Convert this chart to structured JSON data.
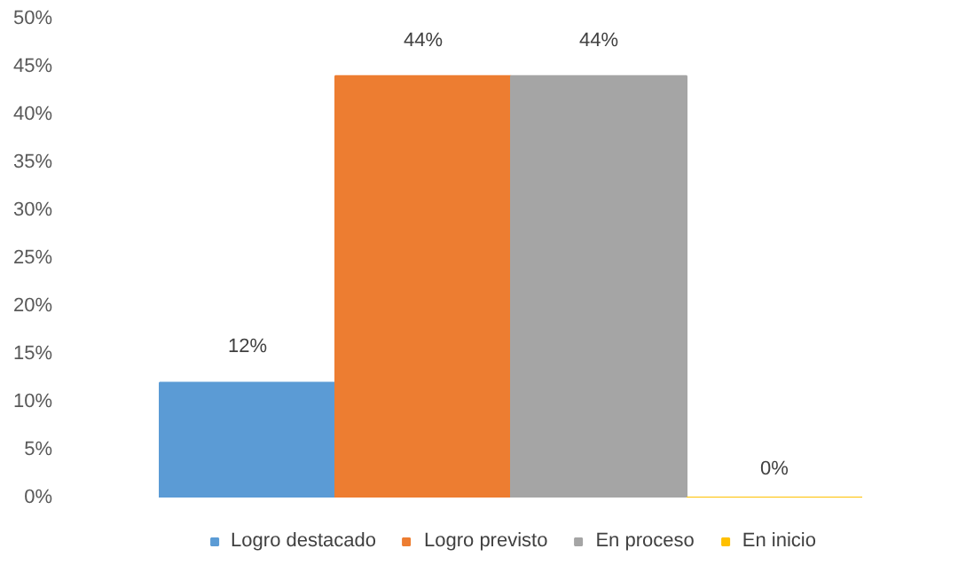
{
  "chart_data": {
    "type": "bar",
    "categories": [
      null
    ],
    "series": [
      {
        "name": "Logro destacado",
        "color": "#5b9bd5",
        "values": [
          12
        ],
        "value_labels": [
          "12%"
        ]
      },
      {
        "name": "Logro previsto",
        "color": "#ed7d31",
        "values": [
          44
        ],
        "value_labels": [
          "44%"
        ]
      },
      {
        "name": "En proceso",
        "color": "#a5a5a5",
        "values": [
          44
        ],
        "value_labels": [
          "44%"
        ]
      },
      {
        "name": "En inicio",
        "color": "#ffc000",
        "values": [
          0
        ],
        "value_labels": [
          "0%"
        ]
      }
    ],
    "ylim": [
      0,
      50
    ],
    "yticks": [
      {
        "value": 0,
        "label": "0%"
      },
      {
        "value": 5,
        "label": "5%"
      },
      {
        "value": 10,
        "label": "10%"
      },
      {
        "value": 15,
        "label": "15%"
      },
      {
        "value": 20,
        "label": "20%"
      },
      {
        "value": 25,
        "label": "25%"
      },
      {
        "value": 30,
        "label": "30%"
      },
      {
        "value": 35,
        "label": "35%"
      },
      {
        "value": 40,
        "label": "40%"
      },
      {
        "value": 45,
        "label": "45%"
      },
      {
        "value": 50,
        "label": "50%"
      }
    ],
    "legend": "bottom",
    "grid": false
  }
}
